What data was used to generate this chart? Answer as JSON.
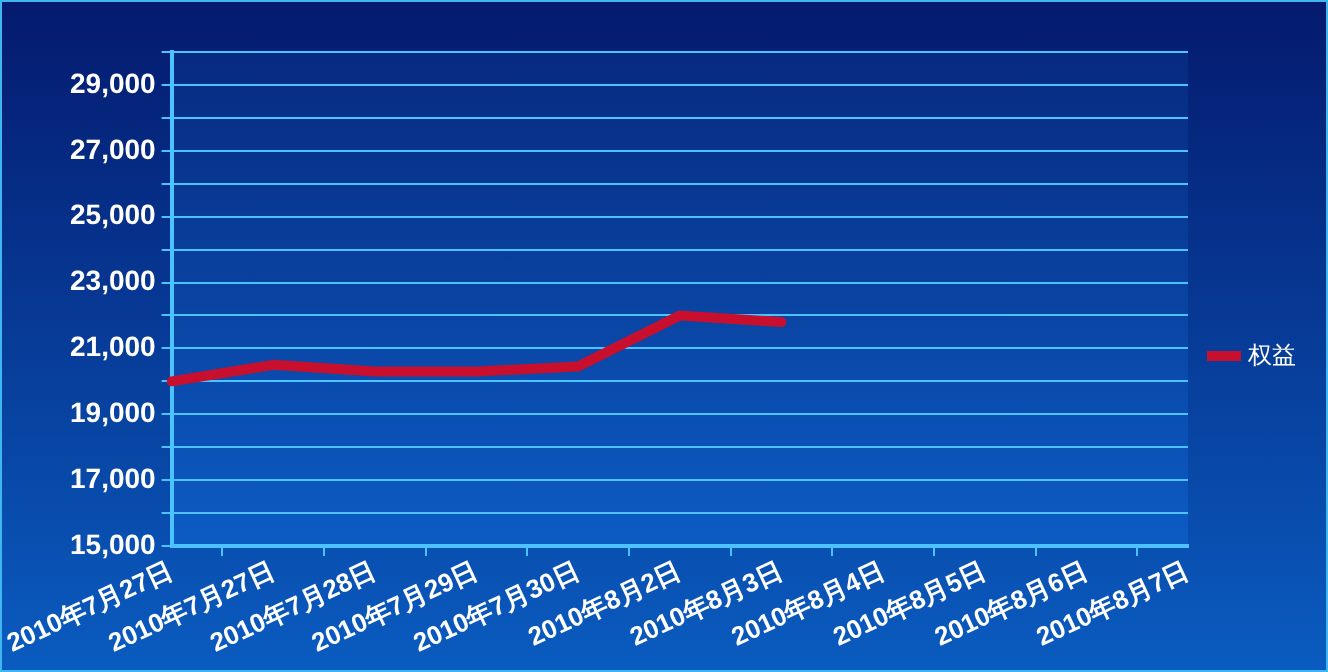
{
  "chart_data": {
    "type": "line",
    "categories": [
      "2010年7月27日",
      "2010年7月27日",
      "2010年7月28日",
      "2010年7月29日",
      "2010年7月30日",
      "2010年8月2日",
      "2010年8月3日",
      "2010年8月4日",
      "2010年8月5日",
      "2010年8月6日",
      "2010年8月7日"
    ],
    "series": [
      {
        "name": "权益",
        "color": "#c8102e",
        "values": [
          20000,
          20500,
          20300,
          20300,
          20450,
          22000,
          21800,
          null,
          null,
          null,
          null
        ]
      }
    ],
    "ylim": [
      15000,
      30000
    ],
    "yticks": [
      {
        "value": 15000,
        "label": "15,000"
      },
      {
        "value": 16000,
        "label": null
      },
      {
        "value": 17000,
        "label": "17,000"
      },
      {
        "value": 18000,
        "label": null
      },
      {
        "value": 19000,
        "label": "19,000"
      },
      {
        "value": 20000,
        "label": null
      },
      {
        "value": 21000,
        "label": "21,000"
      },
      {
        "value": 22000,
        "label": null
      },
      {
        "value": 23000,
        "label": "23,000"
      },
      {
        "value": 24000,
        "label": null
      },
      {
        "value": 25000,
        "label": "25,000"
      },
      {
        "value": 26000,
        "label": null
      },
      {
        "value": 27000,
        "label": "27,000"
      },
      {
        "value": 28000,
        "label": null
      },
      {
        "value": 29000,
        "label": "29,000"
      },
      {
        "value": 30000,
        "label": null
      }
    ],
    "grid": "y",
    "legend": "right",
    "marker": "none",
    "line_style": "solid"
  }
}
